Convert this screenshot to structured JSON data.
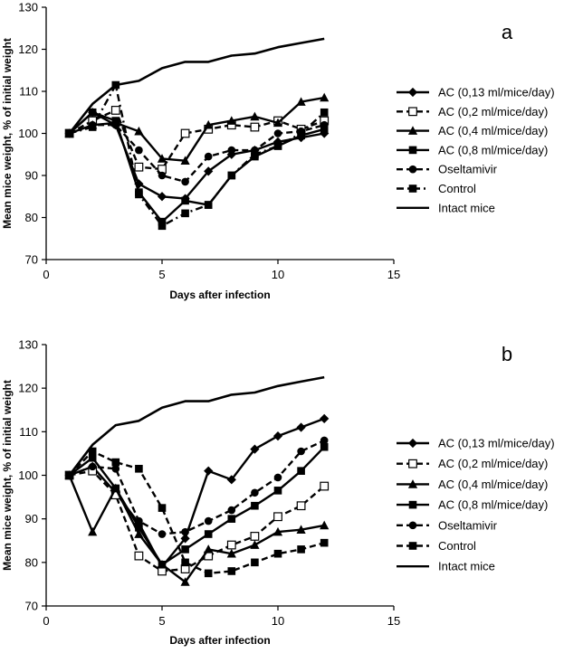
{
  "chart_data": [
    {
      "type": "line",
      "panel_label": "a",
      "xlabel": "Days after infection",
      "ylabel": "Mean mice weight, % of initial weight",
      "xlim": [
        0,
        15
      ],
      "ylim": [
        70,
        130
      ],
      "xticks": [
        0,
        5,
        10,
        15
      ],
      "yticks": [
        70,
        80,
        90,
        100,
        110,
        120,
        130
      ],
      "grid": false,
      "legend_position": "right",
      "series": [
        {
          "name": "AC (0,13 ml/mice/day)",
          "marker": "diamond",
          "dash": "solid",
          "x": [
            1,
            2,
            3,
            4,
            5,
            6,
            7,
            8,
            9,
            10,
            11,
            12
          ],
          "y": [
            100,
            105,
            102,
            88,
            85,
            84.5,
            91,
            95,
            96,
            98,
            99,
            100
          ]
        },
        {
          "name": "AC (0,2 ml/mice/day)",
          "marker": "open-square",
          "dash": "dashed",
          "x": [
            1,
            2,
            3,
            4,
            5,
            6,
            7,
            8,
            9,
            10,
            11,
            12
          ],
          "y": [
            100,
            103,
            105.5,
            92,
            91.5,
            100,
            101,
            102,
            101.5,
            103,
            101,
            103
          ]
        },
        {
          "name": "AC (0,4 ml/mice/day)",
          "marker": "triangle",
          "dash": "solid",
          "x": [
            1,
            2,
            3,
            4,
            5,
            6,
            7,
            8,
            9,
            10,
            11,
            12
          ],
          "y": [
            100,
            102,
            102.5,
            100.5,
            94,
            93.5,
            102,
            103,
            104,
            102.5,
            107.5,
            108.5
          ]
        },
        {
          "name": "AC (0,8 ml/mice/day)",
          "marker": "square",
          "dash": "solid",
          "x": [
            1,
            2,
            3,
            4,
            5,
            6,
            7,
            8,
            9,
            10,
            11,
            12
          ],
          "y": [
            100,
            105,
            103,
            86,
            79,
            84,
            83,
            90,
            94.5,
            97,
            99.5,
            101
          ]
        },
        {
          "name": "Oseltamivir",
          "marker": "circle",
          "dash": "dashed",
          "x": [
            1,
            2,
            3,
            4,
            5,
            6,
            7,
            8,
            9,
            10,
            11,
            12
          ],
          "y": [
            100,
            102,
            102,
            96,
            90,
            88.5,
            94.5,
            96,
            96,
            100,
            100.5,
            102
          ]
        },
        {
          "name": "Control",
          "marker": "square",
          "dash": "dashdot",
          "x": [
            1,
            2,
            3,
            4,
            5,
            6,
            7,
            8,
            9,
            10,
            11,
            12
          ],
          "y": [
            100,
            101.5,
            111.5,
            85.5,
            78,
            81,
            83,
            90,
            95,
            97,
            100,
            105
          ]
        },
        {
          "name": "Intact mice",
          "marker": "none",
          "dash": "solid",
          "x": [
            1,
            2,
            3,
            4,
            5,
            6,
            7,
            8,
            9,
            10,
            11,
            12
          ],
          "y": [
            100,
            107,
            111.5,
            112.5,
            115.5,
            117,
            117,
            118.5,
            119,
            120.5,
            121.5,
            122.5
          ]
        }
      ]
    },
    {
      "type": "line",
      "panel_label": "b",
      "xlabel": "Days after infection",
      "ylabel": "Mean mice weight, % of initial weight",
      "xlim": [
        0,
        15
      ],
      "ylim": [
        70,
        130
      ],
      "xticks": [
        0,
        5,
        10,
        15
      ],
      "yticks": [
        70,
        80,
        90,
        100,
        110,
        120,
        130
      ],
      "grid": false,
      "legend_position": "right",
      "series": [
        {
          "name": "AC (0,13 ml/mice/day)",
          "marker": "diamond",
          "dash": "solid",
          "x": [
            1,
            2,
            3,
            4,
            5,
            6,
            7,
            8,
            9,
            10,
            11,
            12
          ],
          "y": [
            100,
            102,
            96,
            89,
            79,
            85.5,
            101,
            99,
            106,
            109,
            111,
            113
          ]
        },
        {
          "name": "AC (0,2 ml/mice/day)",
          "marker": "open-square",
          "dash": "dashed",
          "x": [
            1,
            2,
            3,
            4,
            5,
            6,
            7,
            8,
            9,
            10,
            11,
            12
          ],
          "y": [
            100,
            101,
            95.5,
            81.5,
            78,
            78.5,
            81.5,
            84,
            86,
            90.5,
            93,
            97.5
          ]
        },
        {
          "name": "AC (0,4 ml/mice/day)",
          "marker": "triangle",
          "dash": "solid",
          "x": [
            1,
            2,
            3,
            4,
            5,
            6,
            7,
            8,
            9,
            10,
            11,
            12
          ],
          "y": [
            100,
            87,
            97,
            86.5,
            79.5,
            75.5,
            83,
            82,
            84,
            87,
            87.5,
            88.5
          ]
        },
        {
          "name": "AC (0,8 ml/mice/day)",
          "marker": "square",
          "dash": "solid",
          "x": [
            1,
            2,
            3,
            4,
            5,
            6,
            7,
            8,
            9,
            10,
            11,
            12
          ],
          "y": [
            100,
            104,
            97,
            88,
            79.5,
            83,
            86.5,
            90,
            93,
            96.5,
            101,
            106.5
          ]
        },
        {
          "name": "Oseltamivir",
          "marker": "circle",
          "dash": "dashed",
          "x": [
            1,
            2,
            3,
            4,
            5,
            6,
            7,
            8,
            9,
            10,
            11,
            12
          ],
          "y": [
            100,
            102,
            101.5,
            89.5,
            86.5,
            87,
            89.5,
            92,
            96,
            99.5,
            105.5,
            108
          ]
        },
        {
          "name": "Control",
          "marker": "square",
          "dash": "dashed",
          "x": [
            1,
            2,
            3,
            4,
            5,
            6,
            7,
            8,
            9,
            10,
            11,
            12
          ],
          "y": [
            100,
            105.5,
            103,
            101.5,
            92.5,
            80,
            77.5,
            78,
            80,
            82,
            83,
            84.5
          ]
        },
        {
          "name": "Intact mice",
          "marker": "none",
          "dash": "solid",
          "x": [
            1,
            2,
            3,
            4,
            5,
            6,
            7,
            8,
            9,
            10,
            11,
            12
          ],
          "y": [
            100,
            107,
            111.5,
            112.5,
            115.5,
            117,
            117,
            118.5,
            119,
            120.5,
            121.5,
            122.5
          ]
        }
      ]
    }
  ]
}
